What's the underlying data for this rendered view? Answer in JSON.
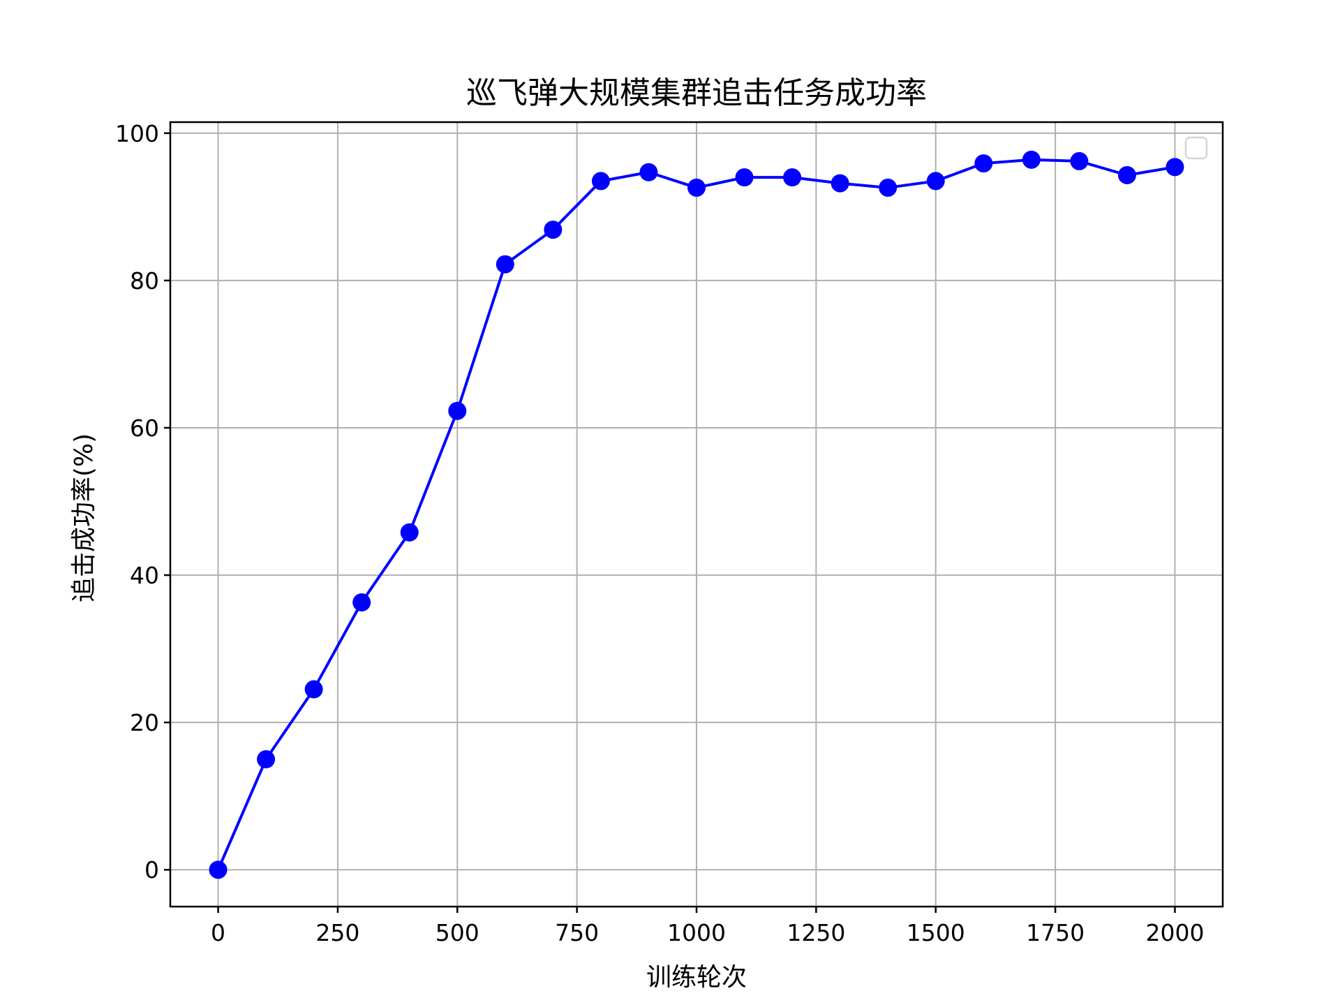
{
  "chart_data": {
    "type": "line",
    "title": "巡飞弹大规模集群追击任务成功率",
    "xlabel": "训练轮次",
    "ylabel": "追击成功率(%)",
    "xlim": [
      -100,
      2100
    ],
    "ylim": [
      -5,
      101.5
    ],
    "xticks": [
      0,
      250,
      500,
      750,
      1000,
      1250,
      1500,
      1750,
      2000
    ],
    "yticks": [
      0,
      20,
      40,
      60,
      80,
      100
    ],
    "grid": true,
    "legend": "top-right (empty)",
    "series": [
      {
        "color": "#0000ff",
        "marker": "circle",
        "x": [
          0,
          100,
          200,
          300,
          400,
          500,
          600,
          700,
          800,
          900,
          1000,
          1100,
          1200,
          1300,
          1400,
          1500,
          1600,
          1700,
          1800,
          1900,
          2000
        ],
        "y": [
          0,
          15.0,
          24.5,
          36.3,
          45.8,
          62.3,
          82.2,
          86.9,
          93.5,
          94.7,
          92.6,
          94.0,
          94.0,
          93.2,
          92.6,
          93.5,
          95.9,
          96.4,
          96.2,
          94.3,
          95.4
        ]
      }
    ]
  }
}
